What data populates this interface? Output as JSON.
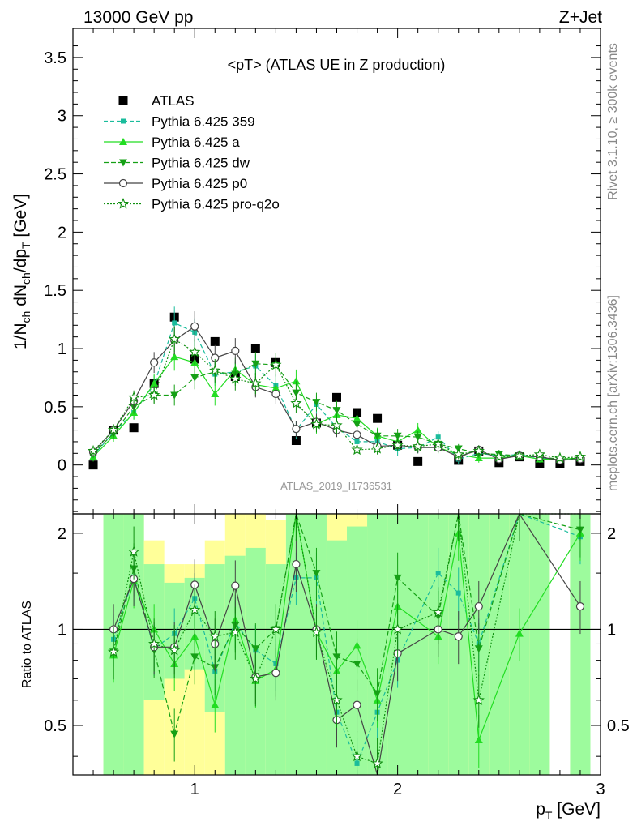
{
  "header": {
    "left": "13000 GeV pp",
    "right": "Z+Jet"
  },
  "side_labels": {
    "rivet": "Rivet 3.1.10, ≥ 300k events",
    "mcplots": "mcplots.cern.ch [arXiv:1306.3436]"
  },
  "analysis_id": "ATLAS_2019_I1736531",
  "colors": {
    "data": "#000000",
    "p359": "#1abc9c",
    "pa": "#22dd22",
    "pdw": "#15a015",
    "pp0": "#444444",
    "pq2o": "#0f8f0f",
    "band_green": "#9dfb9d",
    "band_yellow": "#ffff99"
  },
  "chart_data": [
    {
      "type": "scatter",
      "title": "<pT> (ATLAS UE in Z production)",
      "ylabel": "1/N_ch dN_ch/dp_T [GeV]",
      "xlim": [
        0.4,
        3.0
      ],
      "ylim": [
        -0.42,
        3.75
      ],
      "xticks": [
        {
          "v": 1,
          "label": "1"
        },
        {
          "v": 2,
          "label": "2"
        },
        {
          "v": 3,
          "label": "3"
        }
      ],
      "yticks": [
        {
          "v": 0,
          "label": "0"
        },
        {
          "v": 0.5,
          "label": "0.5"
        },
        {
          "v": 1,
          "label": "1"
        },
        {
          "v": 1.5,
          "label": "1.5"
        },
        {
          "v": 2,
          "label": "2"
        },
        {
          "v": 2.5,
          "label": "2.5"
        },
        {
          "v": 3,
          "label": "3"
        },
        {
          "v": 3.5,
          "label": "3.5"
        }
      ],
      "legend_position": "top-left",
      "x": [
        0.5,
        0.6,
        0.7,
        0.8,
        0.9,
        1.0,
        1.1,
        1.2,
        1.3,
        1.4,
        1.5,
        1.6,
        1.7,
        1.8,
        1.9,
        2.0,
        2.1,
        2.2,
        2.3,
        2.4,
        2.5,
        2.6,
        2.7,
        2.8,
        2.9
      ],
      "series": [
        {
          "name": "ATLAS",
          "style": "data",
          "values": [
            0.0,
            0.3,
            0.32,
            0.7,
            1.27,
            0.91,
            1.06,
            0.76,
            1.0,
            0.88,
            0.21,
            0.36,
            0.58,
            0.45,
            0.4,
            0.17,
            0.03,
            0.16,
            0.04,
            0.12,
            0.02,
            0.07,
            0.01,
            0.01,
            0.03
          ],
          "errors": []
        },
        {
          "name": "Pythia 6.425 359",
          "style": "p359",
          "values": [
            0.08,
            0.28,
            0.45,
            0.69,
            1.22,
            1.14,
            0.78,
            0.8,
            0.85,
            0.68,
            0.3,
            0.52,
            0.32,
            0.2,
            0.2,
            0.14,
            0.15,
            0.24,
            0.05,
            0.1,
            0.08,
            0.09,
            0.06,
            0.04,
            0.06
          ],
          "errors": [
            0.04,
            0.05,
            0.06,
            0.08,
            0.14,
            0.12,
            0.1,
            0.1,
            0.1,
            0.1,
            0.08,
            0.08,
            0.07,
            0.07,
            0.06,
            0.06,
            0.05,
            0.05,
            0.04,
            0.04,
            0.03,
            0.03,
            0.03,
            0.03,
            0.03
          ]
        },
        {
          "name": "Pythia 6.425 a",
          "style": "pa",
          "values": [
            0.07,
            0.25,
            0.45,
            0.7,
            0.93,
            0.88,
            0.61,
            0.82,
            0.69,
            0.66,
            0.72,
            0.35,
            0.43,
            0.4,
            0.25,
            0.2,
            0.3,
            0.15,
            0.09,
            0.06,
            0.06,
            0.08,
            0.05,
            0.05,
            0.06
          ],
          "errors": [
            0.04,
            0.05,
            0.06,
            0.08,
            0.12,
            0.12,
            0.1,
            0.1,
            0.1,
            0.1,
            0.1,
            0.08,
            0.08,
            0.08,
            0.07,
            0.06,
            0.06,
            0.05,
            0.05,
            0.04,
            0.04,
            0.03,
            0.03,
            0.03,
            0.03
          ]
        },
        {
          "name": "Pythia 6.425 dw",
          "style": "pdw",
          "values": [
            0.1,
            0.27,
            0.5,
            0.6,
            0.6,
            0.75,
            0.8,
            0.78,
            0.87,
            0.86,
            0.62,
            0.54,
            0.47,
            0.35,
            0.25,
            0.25,
            0.24,
            0.18,
            0.14,
            0.1,
            0.09,
            0.08,
            0.07,
            0.05,
            0.06
          ],
          "errors": [
            0.04,
            0.05,
            0.06,
            0.07,
            0.09,
            0.1,
            0.1,
            0.1,
            0.1,
            0.1,
            0.1,
            0.08,
            0.08,
            0.07,
            0.06,
            0.06,
            0.05,
            0.05,
            0.04,
            0.04,
            0.04,
            0.03,
            0.03,
            0.03,
            0.03
          ]
        },
        {
          "name": "Pythia 6.425 p0",
          "style": "pp0",
          "values": [
            0.11,
            0.3,
            0.55,
            0.88,
            1.07,
            1.19,
            0.92,
            0.98,
            0.67,
            0.61,
            0.31,
            0.37,
            0.3,
            0.26,
            0.16,
            0.17,
            0.15,
            0.15,
            0.07,
            0.13,
            0.05,
            0.08,
            0.07,
            0.04,
            0.05
          ],
          "errors": [
            0.04,
            0.05,
            0.07,
            0.09,
            0.12,
            0.13,
            0.11,
            0.11,
            0.09,
            0.09,
            0.07,
            0.07,
            0.06,
            0.06,
            0.05,
            0.05,
            0.05,
            0.04,
            0.04,
            0.04,
            0.03,
            0.03,
            0.03,
            0.03,
            0.03
          ]
        },
        {
          "name": "Pythia 6.425 pro-q2o",
          "style": "pq2o",
          "values": [
            0.12,
            0.3,
            0.58,
            0.6,
            1.08,
            0.97,
            0.81,
            0.74,
            0.7,
            0.86,
            0.53,
            0.35,
            0.34,
            0.13,
            0.14,
            0.17,
            0.16,
            0.18,
            0.09,
            0.12,
            0.07,
            0.08,
            0.09,
            0.06,
            0.07
          ],
          "errors": [
            0.04,
            0.05,
            0.06,
            0.08,
            0.11,
            0.11,
            0.1,
            0.1,
            0.09,
            0.1,
            0.08,
            0.07,
            0.07,
            0.06,
            0.05,
            0.05,
            0.05,
            0.04,
            0.04,
            0.04,
            0.03,
            0.03,
            0.03,
            0.03,
            0.03
          ]
        }
      ]
    },
    {
      "type": "scatter",
      "title": "",
      "xlabel": "p_T [GeV]",
      "ylabel": "Ratio to ATLAS",
      "xlim": [
        0.4,
        3.0
      ],
      "ylim": [
        0.35,
        2.3
      ],
      "ylog": true,
      "reference_line": 1,
      "xticks": [
        {
          "v": 1,
          "label": "1"
        },
        {
          "v": 2,
          "label": "2"
        },
        {
          "v": 3,
          "label": "3"
        }
      ],
      "yticks": [
        {
          "v": 0.5,
          "label": "0.5"
        },
        {
          "v": 1,
          "label": "1"
        },
        {
          "v": 2,
          "label": "2"
        }
      ],
      "bands": [
        {
          "x": [
            0.55,
            0.65
          ],
          "yellow": [
            0.35,
            2.3
          ],
          "green": [
            0.35,
            2.3
          ]
        },
        {
          "x": [
            0.65,
            0.75
          ],
          "yellow": [
            0.35,
            2.3
          ],
          "green": [
            0.35,
            2.3
          ]
        },
        {
          "x": [
            0.75,
            0.85
          ],
          "yellow": [
            0.35,
            1.9
          ],
          "green": [
            0.6,
            1.6
          ]
        },
        {
          "x": [
            0.85,
            0.95
          ],
          "yellow": [
            0.35,
            1.6
          ],
          "green": [
            0.7,
            1.4
          ]
        },
        {
          "x": [
            0.95,
            1.05
          ],
          "yellow": [
            0.35,
            1.6
          ],
          "green": [
            0.75,
            1.45
          ]
        },
        {
          "x": [
            1.05,
            1.15
          ],
          "yellow": [
            0.35,
            1.9
          ],
          "green": [
            0.55,
            1.6
          ]
        },
        {
          "x": [
            1.15,
            1.25
          ],
          "yellow": [
            0.35,
            2.3
          ],
          "green": [
            0.35,
            1.7
          ]
        },
        {
          "x": [
            1.25,
            1.35
          ],
          "yellow": [
            0.55,
            2.3
          ],
          "green": [
            0.35,
            1.8
          ]
        },
        {
          "x": [
            1.35,
            1.45
          ],
          "yellow": [
            0.35,
            2.2
          ],
          "green": [
            0.35,
            1.6
          ]
        },
        {
          "x": [
            1.45,
            1.55
          ],
          "yellow": [
            0.35,
            2.3
          ],
          "green": [
            0.35,
            2.3
          ]
        },
        {
          "x": [
            1.55,
            1.65
          ],
          "yellow": [
            0.35,
            2.3
          ],
          "green": [
            0.35,
            2.3
          ]
        },
        {
          "x": [
            1.65,
            1.75
          ],
          "yellow": [
            0.35,
            2.3
          ],
          "green": [
            0.35,
            1.9
          ]
        },
        {
          "x": [
            1.75,
            1.85
          ],
          "yellow": [
            0.35,
            2.3
          ],
          "green": [
            0.35,
            2.1
          ]
        },
        {
          "x": [
            1.85,
            1.95
          ],
          "yellow": [
            0.35,
            2.3
          ],
          "green": [
            0.35,
            2.3
          ]
        },
        {
          "x": [
            1.95,
            2.05
          ],
          "yellow": [
            0.35,
            2.3
          ],
          "green": [
            0.35,
            2.3
          ]
        },
        {
          "x": [
            2.05,
            2.15
          ],
          "yellow": [
            0.35,
            2.3
          ],
          "green": [
            0.35,
            2.3
          ]
        },
        {
          "x": [
            2.15,
            2.25
          ],
          "yellow": [
            0.35,
            2.3
          ],
          "green": [
            0.35,
            2.3
          ]
        },
        {
          "x": [
            2.25,
            2.35
          ],
          "yellow": [
            0.35,
            2.3
          ],
          "green": [
            0.35,
            2.3
          ]
        },
        {
          "x": [
            2.35,
            2.45
          ],
          "yellow": [
            0.35,
            2.3
          ],
          "green": [
            0.35,
            2.3
          ]
        },
        {
          "x": [
            2.45,
            2.55
          ],
          "yellow": [
            0.35,
            2.3
          ],
          "green": [
            0.35,
            2.3
          ]
        },
        {
          "x": [
            2.55,
            2.65
          ],
          "yellow": [
            0.35,
            2.3
          ],
          "green": [
            0.35,
            2.3
          ]
        },
        {
          "x": [
            2.65,
            2.75
          ],
          "yellow": [
            0.35,
            2.3
          ],
          "green": [
            0.35,
            2.3
          ]
        },
        {
          "x": [
            2.85,
            2.95
          ],
          "yellow": [
            0.35,
            2.3
          ],
          "green": [
            0.35,
            2.3
          ]
        }
      ],
      "x": [
        0.6,
        0.7,
        0.8,
        0.9,
        1.0,
        1.1,
        1.2,
        1.3,
        1.4,
        1.5,
        1.6,
        1.7,
        1.8,
        1.9,
        2.0,
        2.2,
        2.3,
        2.4,
        2.6,
        2.9
      ],
      "series": [
        {
          "name": "Pythia 6.425 359",
          "style": "p359",
          "values": [
            0.93,
            1.46,
            0.87,
            0.97,
            1.25,
            0.74,
            1.05,
            0.86,
            0.78,
            1.45,
            1.45,
            0.55,
            0.38,
            0.55,
            0.8,
            1.5,
            1.3,
            0.9,
            2.3,
            1.95
          ]
        },
        {
          "name": "Pythia 6.425 a",
          "style": "pa",
          "values": [
            0.83,
            1.42,
            1.0,
            0.78,
            0.95,
            0.58,
            1.07,
            0.69,
            0.75,
            2.3,
            0.98,
            0.74,
            0.89,
            0.6,
            1.18,
            0.95,
            2.0,
            0.45,
            0.97,
            2.0
          ]
        },
        {
          "name": "Pythia 6.425 dw",
          "style": "pdw",
          "values": [
            0.85,
            1.55,
            0.86,
            0.47,
            0.82,
            0.76,
            1.03,
            0.87,
            1.0,
            2.3,
            1.5,
            0.82,
            0.78,
            0.63,
            1.45,
            1.1,
            2.3,
            0.87,
            2.3,
            2.05
          ]
        },
        {
          "name": "Pythia 6.425 p0",
          "style": "pp0",
          "values": [
            1.0,
            1.44,
            0.88,
            0.88,
            1.38,
            0.9,
            1.37,
            0.71,
            0.73,
            1.6,
            1.0,
            0.52,
            0.58,
            0.35,
            0.84,
            1.0,
            0.95,
            1.18,
            2.3,
            1.18
          ]
        },
        {
          "name": "Pythia 6.425 pro-q2o",
          "style": "pq2o",
          "values": [
            0.85,
            1.75,
            0.9,
            0.86,
            1.15,
            0.95,
            0.98,
            0.7,
            1.0,
            2.3,
            0.98,
            0.6,
            0.4,
            0.38,
            1.0,
            1.13,
            2.3,
            0.6,
            2.3,
            2.3
          ]
        }
      ]
    }
  ]
}
